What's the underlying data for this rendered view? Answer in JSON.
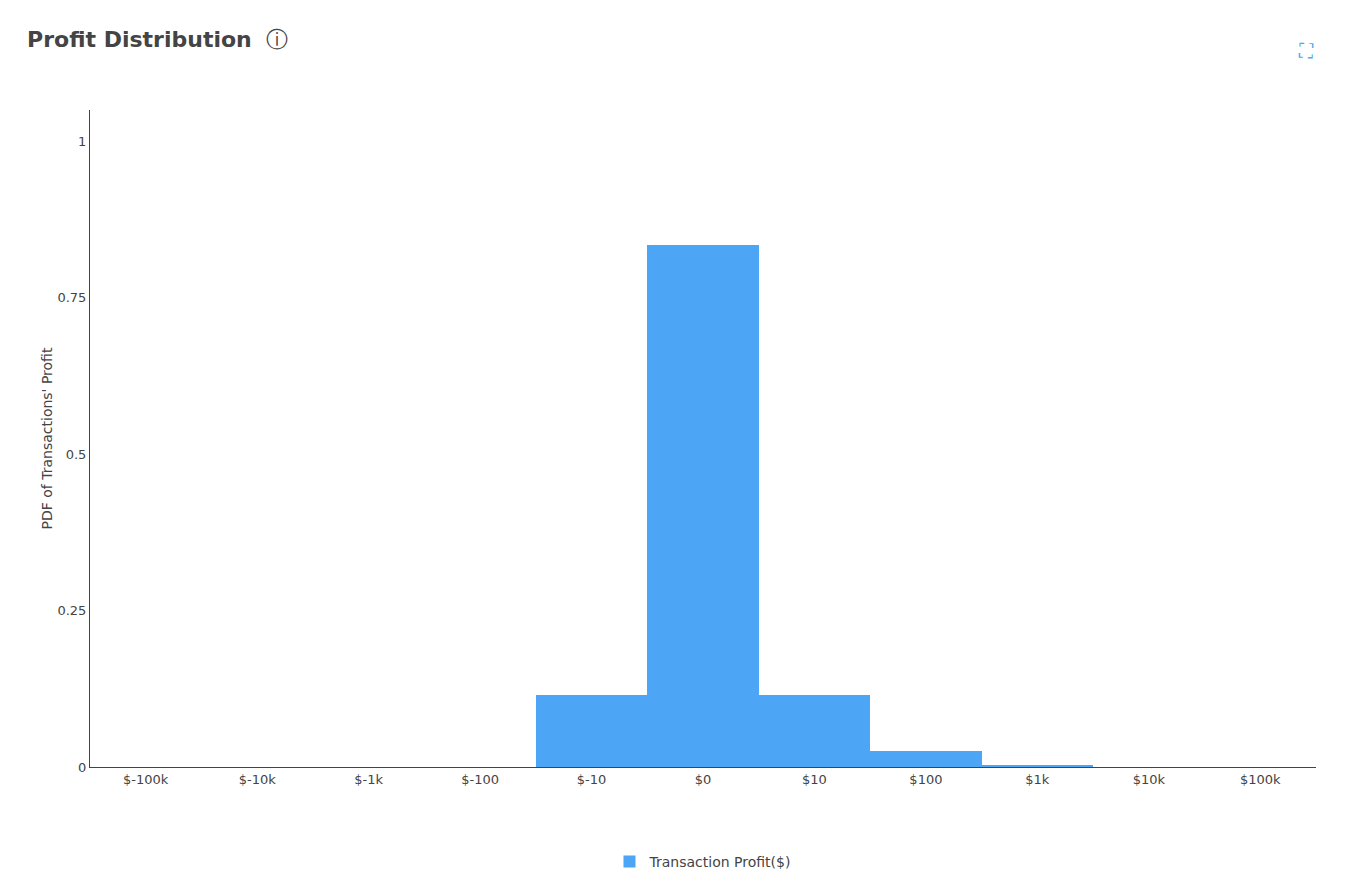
{
  "chart_data": {
    "type": "bar",
    "title": "Profit Distribution",
    "y_label": "PDF of Transactions' Profit",
    "annotations": [
      "ⓘ",
      "⛶"
    ],
    "categories": [
      "$-100k",
      "$-10k",
      "$-1k",
      "$-100",
      "$-10",
      "$0",
      "$10",
      "$100",
      "$1k",
      "$10k",
      "$100k"
    ],
    "series": [
      {
        "name": "Transaction Profit($)",
        "color": "#4da6f5",
        "values": [
          0,
          0,
          0,
          0,
          0.115,
          0.835,
          0.115,
          0.025,
          0.004,
          0,
          0
        ]
      }
    ],
    "ylim": [
      0,
      1.05
    ],
    "yticks": [
      0,
      0.25,
      0.5,
      0.75,
      1
    ],
    "grid": false,
    "legend": "bottom"
  }
}
